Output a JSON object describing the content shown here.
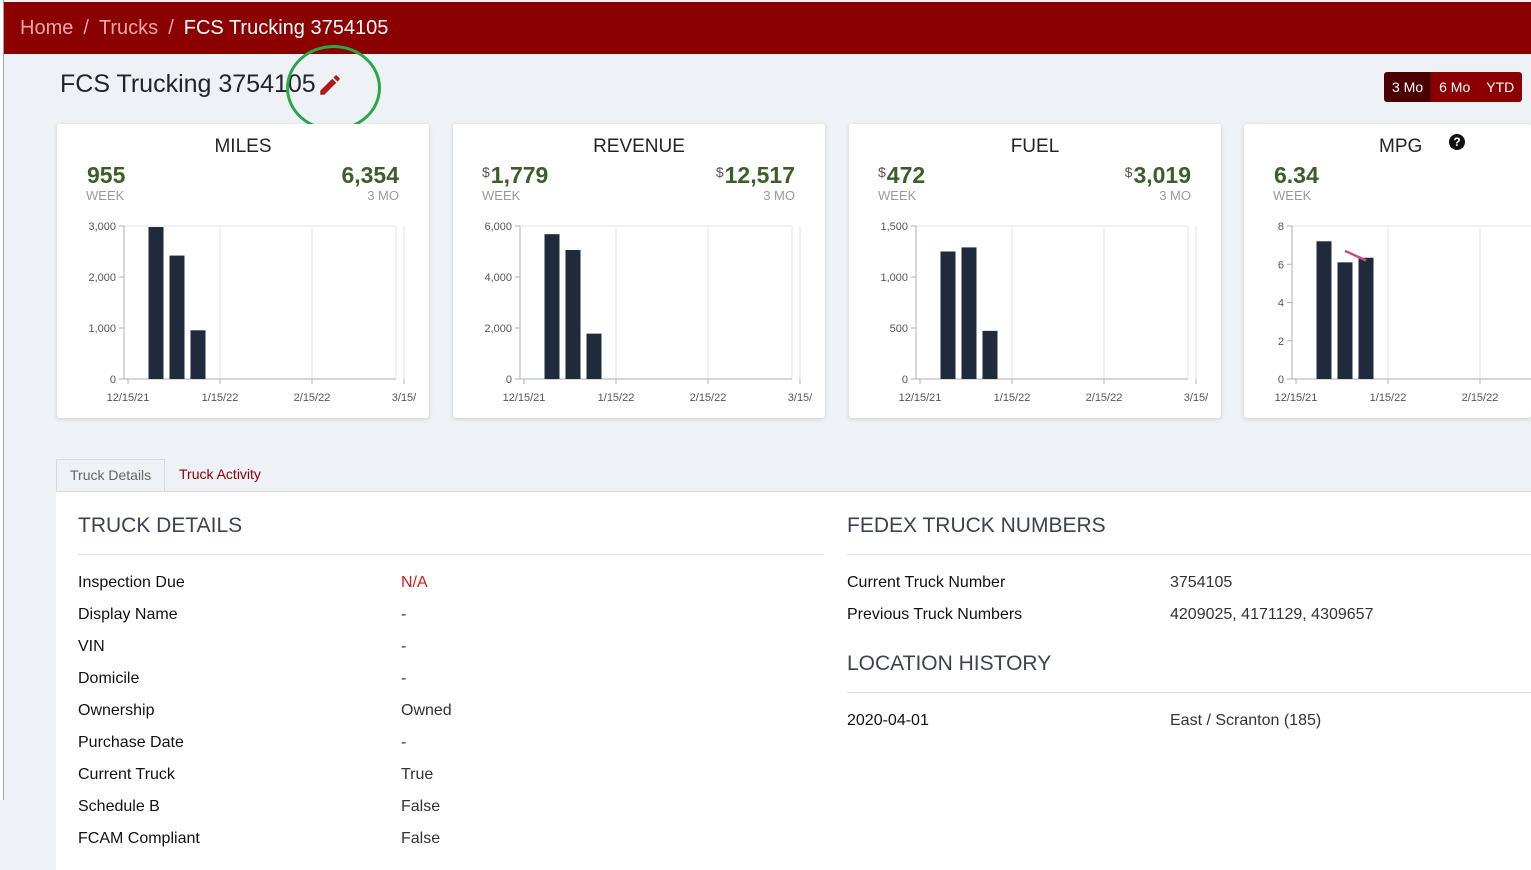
{
  "breadcrumb": {
    "home": "Home",
    "trucks": "Trucks",
    "current": "FCS Trucking 3754105",
    "sep": "/"
  },
  "header": {
    "title": "FCS Trucking 3754105",
    "edit_icon": "pencil-icon"
  },
  "range": {
    "options": [
      "3 Mo",
      "6 Mo",
      "YTD"
    ],
    "selected": "3 Mo"
  },
  "cards": [
    {
      "title": "MILES",
      "week_value": "955",
      "week_currency": "",
      "week_label": "WEEK",
      "total_value": "6,354",
      "total_currency": "",
      "total_label": "3 MO"
    },
    {
      "title": "REVENUE",
      "week_value": "1,779",
      "week_currency": "$",
      "week_label": "WEEK",
      "total_value": "12,517",
      "total_currency": "$",
      "total_label": "3 MO"
    },
    {
      "title": "FUEL",
      "week_value": "472",
      "week_currency": "$",
      "week_label": "WEEK",
      "total_value": "3,019",
      "total_currency": "$",
      "total_label": "3 MO"
    },
    {
      "title": "MPG",
      "week_value": "6.34",
      "week_currency": "",
      "week_label": "WEEK",
      "help_icon": "question-circle-icon",
      "help_glyph": "?"
    }
  ],
  "chart_data": [
    {
      "type": "bar",
      "title": "MILES",
      "x": [
        "12/22/21",
        "12/29/21",
        "1/5/22"
      ],
      "values": [
        2980,
        2420,
        955
      ],
      "ylim": [
        0,
        3000
      ],
      "yticks": [
        "3,000",
        "2,000",
        "1,000",
        "0"
      ],
      "xticks": [
        "12/15/21",
        "1/15/22",
        "2/15/22",
        "3/15/"
      ],
      "grid": true
    },
    {
      "type": "bar",
      "title": "REVENUE",
      "x": [
        "12/22/21",
        "12/29/21",
        "1/5/22"
      ],
      "values": [
        5680,
        5060,
        1779
      ],
      "ylim": [
        0,
        6000
      ],
      "yticks": [
        "6,000",
        "4,000",
        "2,000",
        "0"
      ],
      "xticks": [
        "12/15/21",
        "1/15/22",
        "2/15/22",
        "3/15/"
      ],
      "grid": true
    },
    {
      "type": "bar",
      "title": "FUEL",
      "x": [
        "12/22/21",
        "12/29/21",
        "1/5/22"
      ],
      "values": [
        1250,
        1290,
        472
      ],
      "ylim": [
        0,
        1500
      ],
      "yticks": [
        "1,500",
        "1,000",
        "500",
        "0"
      ],
      "xticks": [
        "12/15/21",
        "1/15/22",
        "2/15/22",
        "3/15/"
      ],
      "grid": true
    },
    {
      "type": "bar",
      "title": "MPG",
      "x": [
        "12/22/21",
        "12/29/21",
        "1/5/22"
      ],
      "values": [
        7.2,
        6.1,
        6.34
      ],
      "ylim": [
        0,
        8
      ],
      "yticks": [
        "8",
        "6",
        "4",
        "2",
        "0"
      ],
      "xticks": [
        "12/15/21",
        "1/15/22",
        "2/15/22"
      ],
      "grid": true,
      "trend_line": [
        6.7,
        6.2
      ],
      "trend_color": "#d14a7a"
    }
  ],
  "tabs": [
    {
      "label": "Truck Details",
      "active": true
    },
    {
      "label": "Truck Activity",
      "active": false
    }
  ],
  "truck_details": {
    "title": "TRUCK DETAILS",
    "rows": [
      {
        "label": "Inspection Due",
        "value": "N/A"
      },
      {
        "label": "Display Name",
        "value": "-"
      },
      {
        "label": "VIN",
        "value": "-"
      },
      {
        "label": "Domicile",
        "value": "-"
      },
      {
        "label": "Ownership",
        "value": "Owned"
      },
      {
        "label": "Purchase Date",
        "value": "-"
      },
      {
        "label": "Current Truck",
        "value": "True"
      },
      {
        "label": "Schedule B",
        "value": "False"
      },
      {
        "label": "FCAM Compliant",
        "value": "False"
      }
    ]
  },
  "fedex_numbers": {
    "title": "FEDEX TRUCK NUMBERS",
    "rows": [
      {
        "label": "Current Truck Number",
        "value": "3754105"
      },
      {
        "label": "Previous Truck Numbers",
        "value": "4209025, 4171129, 4309657"
      }
    ]
  },
  "location_history": {
    "title": "LOCATION HISTORY",
    "rows": [
      {
        "label": "2020-04-01",
        "value": "East / Scranton (185)"
      }
    ]
  },
  "colors": {
    "brand": "#8b0000",
    "brand_dark": "#4d0000",
    "bar": "#1f2a3c",
    "stat_green": "#3c5e28",
    "alert": "#c81e1e",
    "highlight": "#2aa84a"
  }
}
